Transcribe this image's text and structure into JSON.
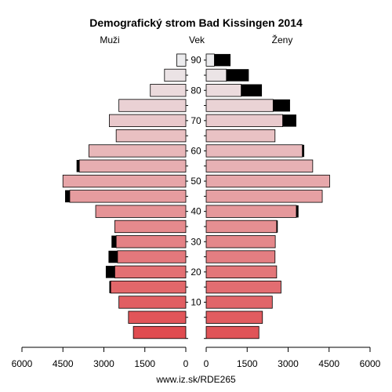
{
  "chart_data": {
    "type": "bar",
    "title": "Demografický strom Bad Kissingen 2014",
    "left_label": "Muži",
    "center_label": "Vek",
    "right_label": "Ženy",
    "footer": "www.iz.sk/RDE265",
    "x_ticks_left": [
      "6000",
      "4500",
      "3000",
      "1500",
      "0"
    ],
    "x_ticks_right": [
      "0",
      "1500",
      "3000",
      "4500",
      "6000"
    ],
    "xlim": [
      0,
      6000
    ],
    "age_tick_labels": [
      "10",
      "20",
      "30",
      "40",
      "50",
      "60",
      "70",
      "80",
      "90"
    ],
    "age_groups": [
      "0-4",
      "5-9",
      "10-14",
      "15-19",
      "20-24",
      "25-29",
      "30-34",
      "35-39",
      "40-44",
      "45-49",
      "50-54",
      "55-59",
      "60-64",
      "65-69",
      "70-74",
      "75-79",
      "80-84",
      "85-89",
      "90+"
    ],
    "series": [
      {
        "side": "male",
        "values": [
          1920,
          2100,
          2450,
          2750,
          2600,
          2500,
          2550,
          2600,
          3300,
          4250,
          4500,
          3900,
          3550,
          2550,
          2800,
          2450,
          1300,
          780,
          330
        ],
        "excess": [
          0,
          0,
          0,
          50,
          330,
          330,
          170,
          0,
          0,
          170,
          0,
          100,
          0,
          0,
          0,
          0,
          0,
          0,
          0
        ]
      },
      {
        "side": "female",
        "values": [
          1930,
          2060,
          2420,
          2740,
          2580,
          2520,
          2530,
          2580,
          3300,
          4250,
          4520,
          3900,
          3520,
          2520,
          2800,
          2450,
          1280,
          740,
          300
        ],
        "excess": [
          0,
          0,
          0,
          0,
          0,
          0,
          0,
          40,
          80,
          0,
          0,
          0,
          70,
          0,
          500,
          620,
          760,
          820,
          590
        ]
      }
    ]
  }
}
